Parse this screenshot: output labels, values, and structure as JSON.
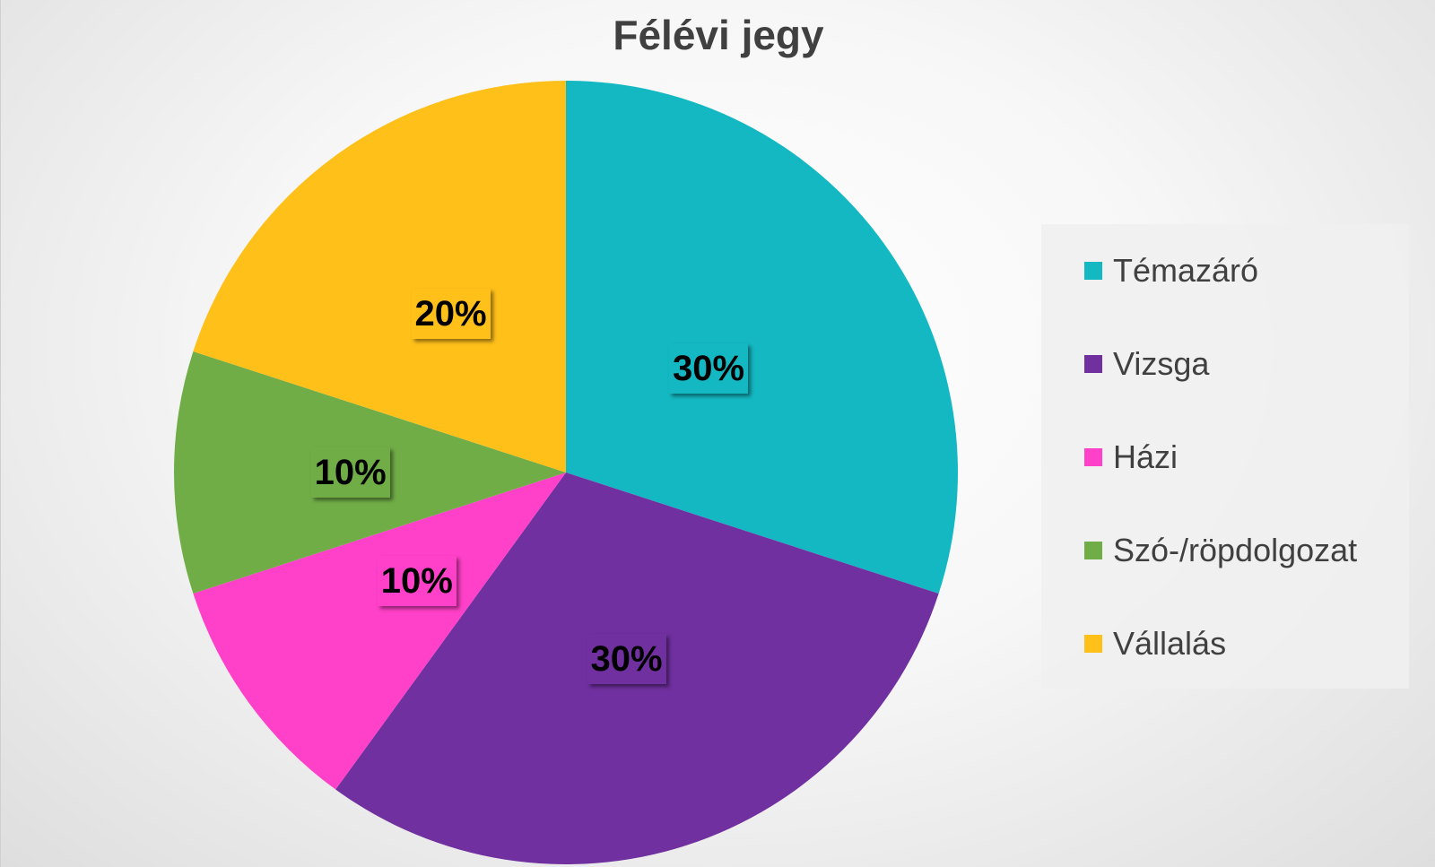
{
  "chart_data": {
    "type": "pie",
    "title": "Félévi jegy",
    "categories": [
      "Témazáró",
      "Vizsga",
      "Házi",
      "Szó-/röpdolgozat",
      "Vállalás"
    ],
    "values": [
      30,
      30,
      10,
      10,
      20
    ],
    "labels": [
      "30%",
      "30%",
      "10%",
      "10%",
      "20%"
    ],
    "colors": [
      "#14B8C2",
      "#7030A0",
      "#FF40C8",
      "#70AD47",
      "#FFC01A"
    ],
    "start_angle_deg": 0,
    "direction": "clockwise",
    "legend_position": "right"
  }
}
